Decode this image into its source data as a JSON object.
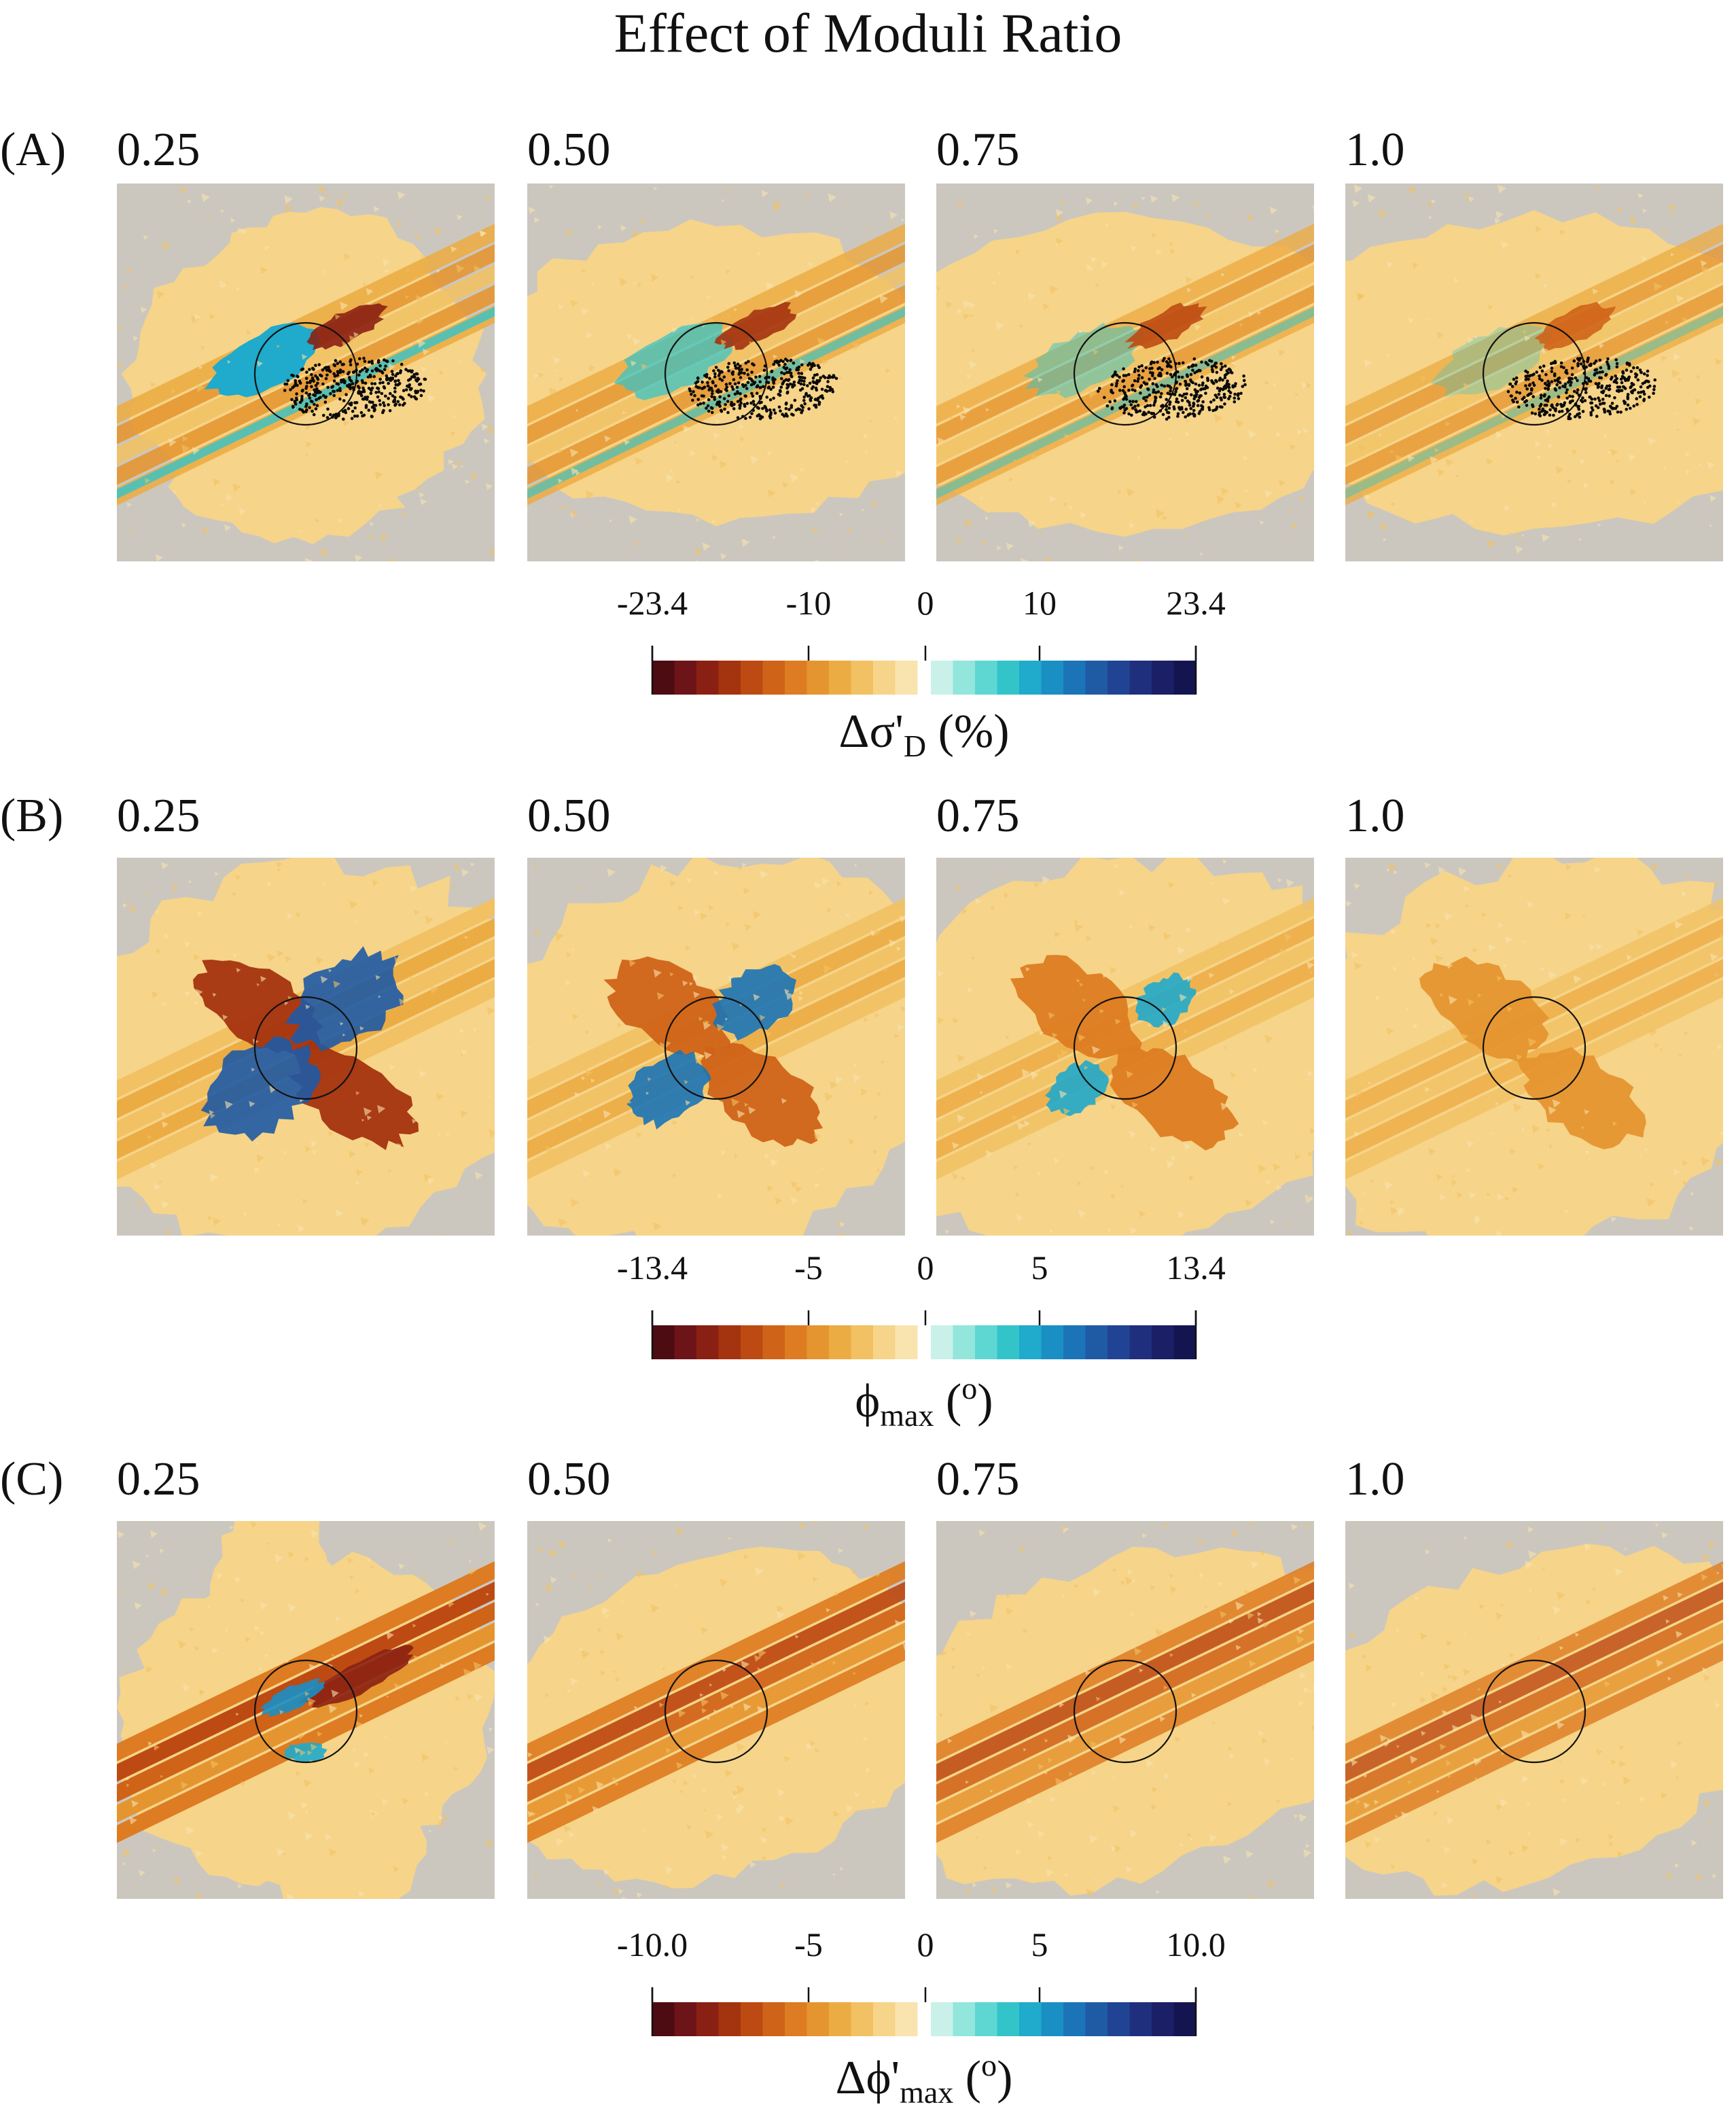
{
  "title": "Effect of Moduli Ratio",
  "rows": [
    {
      "label": "(A)",
      "panels": [
        "0.25",
        "0.50",
        "0.75",
        "1.0"
      ],
      "variable": "dsigma",
      "show_events": true,
      "colorbar": {
        "ticks": [
          "-23.4",
          "-10",
          "0",
          "10",
          "23.4"
        ],
        "label_main": "Δσ'",
        "label_sub": "D",
        "label_tail": " (%)"
      }
    },
    {
      "label": "(B)",
      "panels": [
        "0.25",
        "0.50",
        "0.75",
        "1.0"
      ],
      "variable": "phi",
      "show_events": false,
      "colorbar": {
        "ticks": [
          "-13.4",
          "-5",
          "0",
          "5",
          "13.4"
        ],
        "label_main": "ϕ",
        "label_sub": "max",
        "label_tail": " (",
        "label_sup": "o",
        "label_end": ")"
      }
    },
    {
      "label": "(C)",
      "panels": [
        "0.25",
        "0.50",
        "0.75",
        "1.0"
      ],
      "variable": "dphi",
      "show_events": false,
      "colorbar": {
        "ticks": [
          "-10.0",
          "-5",
          "0",
          "5",
          "10.0"
        ],
        "label_main": "Δϕ'",
        "label_sub": "max",
        "label_tail": " (",
        "label_sup": "o",
        "label_end": ")"
      }
    }
  ],
  "colors": {
    "background_field": "#cbc7bf",
    "neg_scale": [
      "#4d0c12",
      "#6d1418",
      "#8a2013",
      "#a4330f",
      "#bd4a12",
      "#cf6318",
      "#dd7c22",
      "#e5952f",
      "#ecac44",
      "#f1c163",
      "#f6d489",
      "#f9e3ae"
    ],
    "pos_scale": [
      "#c9f1e9",
      "#92e6dc",
      "#5ed7d2",
      "#33c4ca",
      "#20aacb",
      "#1a8fc4",
      "#1b74b7",
      "#1f5aa5",
      "#214393",
      "#1f2f7e",
      "#1a1f66",
      "#141550"
    ]
  }
}
